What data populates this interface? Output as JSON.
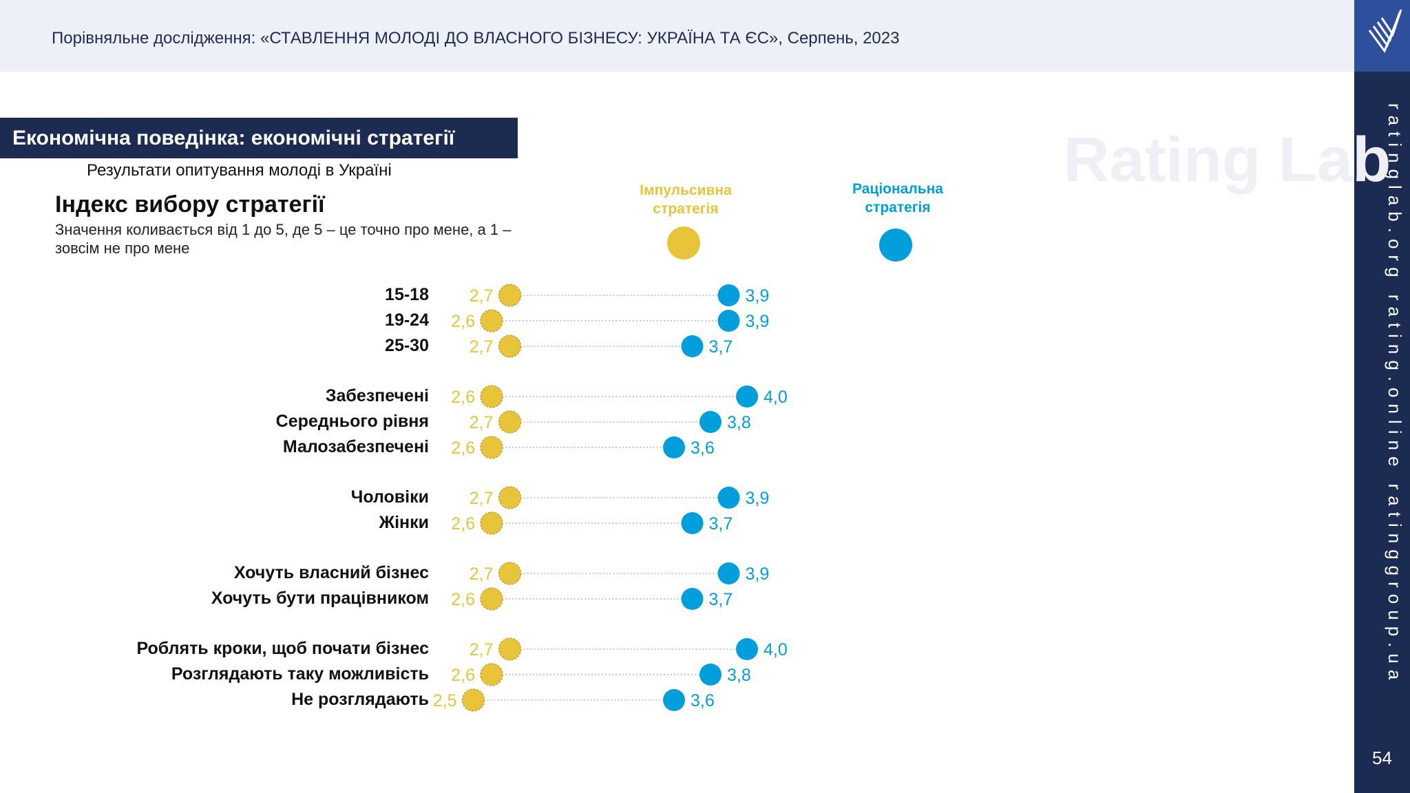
{
  "header": {
    "title": "Порівняльне дослідження: «СТАВЛЕННЯ МОЛОДІ ДО ВЛАСНОГО БІЗНЕСУ: УКРАЇНА ТА ЄС», Серпень, 2023"
  },
  "section": {
    "title": "Економічна поведінка: економічні стратегії",
    "subtitle": "Результати опитування молоді в Україні"
  },
  "chart_heading": {
    "title": "Індекс вибору стратегії",
    "note": "Значення коливається від 1 до 5, де 5 – це точно про мене, а 1 – зовсім не про мене"
  },
  "watermark": "Rating Lab",
  "sidebar": {
    "urls": "ratinglab.org   rating.online   ratinggroup.ua",
    "page_number": "54"
  },
  "colors": {
    "impulsive": "#e8c43b",
    "rational": "#009fdb",
    "navy": "#1c2b52"
  },
  "chart_data": {
    "type": "scatter",
    "subtype": "dumbbell",
    "title": "Індекс вибору стратегії",
    "scale": [
      1,
      5
    ],
    "series": [
      {
        "name": "Імпульсивна стратегія",
        "color": "#e8c43b",
        "values": [
          2.7,
          2.6,
          2.7,
          2.6,
          2.7,
          2.6,
          2.7,
          2.6,
          2.7,
          2.6,
          2.7,
          2.6,
          2.5
        ]
      },
      {
        "name": "Раціональна стратегія",
        "color": "#009fdb",
        "values": [
          3.9,
          3.9,
          3.7,
          4.0,
          3.8,
          3.6,
          3.9,
          3.7,
          3.9,
          3.7,
          4.0,
          3.8,
          3.6
        ]
      }
    ],
    "categories": [
      "15-18",
      "19-24",
      "25-30",
      "Забезпечені",
      "Середнього рівня",
      "Малозабезпечені",
      "Чоловіки",
      "Жінки",
      "Хочуть власний бізнес",
      "Хочуть бути працівником",
      "Роблять кроки, щоб почати бізнес",
      "Розглядають таку можливість",
      "Не розглядають"
    ],
    "value_labels": {
      "impulsive": [
        "2,7",
        "2,6",
        "2,7",
        "2,6",
        "2,7",
        "2,6",
        "2,7",
        "2,6",
        "2,7",
        "2,6",
        "2,7",
        "2,6",
        "2,5"
      ],
      "rational": [
        "3,9",
        "3,9",
        "3,7",
        "4,0",
        "3,8",
        "3,6",
        "3,9",
        "3,7",
        "3,9",
        "3,7",
        "4,0",
        "3,8",
        "3,6"
      ]
    },
    "legend": {
      "impulsive": "Імпульсивна стратегія",
      "rational": "Раціональна стратегія"
    }
  }
}
